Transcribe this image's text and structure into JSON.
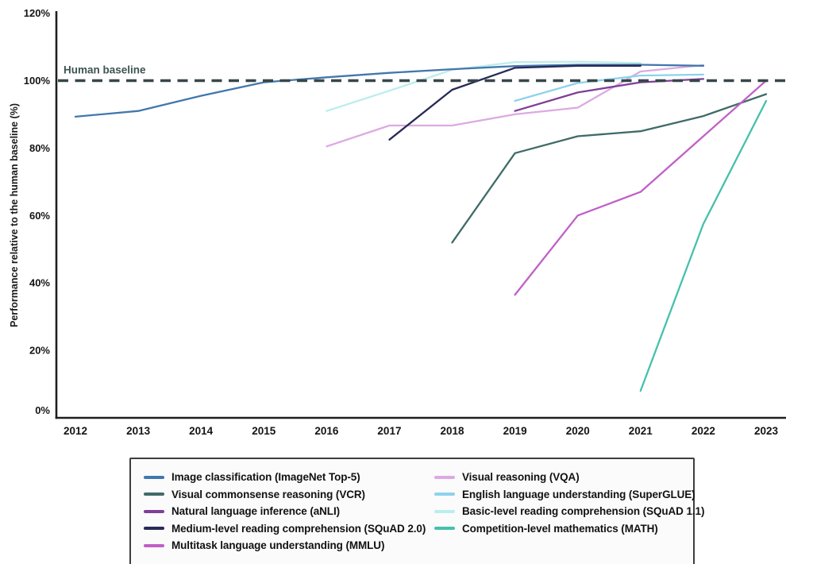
{
  "figure": {
    "background": "#ffffff",
    "axis_color": "#1f1f1f",
    "tick_label_color": "#141414",
    "ylabel_color": "#1a1a1a"
  },
  "chart_data": {
    "type": "line",
    "title": "",
    "xlabel": "",
    "ylabel": "Performance relative to the human baseline (%)",
    "x_ticks": [
      2012,
      2013,
      2014,
      2015,
      2016,
      2017,
      2018,
      2019,
      2020,
      2021,
      2022,
      2023
    ],
    "y_ticks_percent": [
      0,
      20,
      40,
      60,
      80,
      100,
      120
    ],
    "ylim": [
      0,
      120
    ],
    "xlim": [
      2011.7,
      2023.3
    ],
    "grid": false,
    "legend_position": "bottom",
    "annotation": {
      "text": "Human baseline",
      "y": 100,
      "line_color": "#37474a",
      "label_color": "#3f5450",
      "dash": [
        13,
        8.5
      ]
    },
    "series": [
      {
        "key": "imagenet",
        "name": "Image classification (ImageNet Top-5)",
        "color": "#4377ad",
        "points": [
          [
            2012,
            89.3
          ],
          [
            2013,
            91
          ],
          [
            2014,
            95.5
          ],
          [
            2015,
            99.5
          ],
          [
            2016,
            101
          ],
          [
            2017,
            102.3
          ],
          [
            2018,
            103.4
          ],
          [
            2019,
            104.3
          ],
          [
            2020,
            104.7
          ],
          [
            2021,
            104.7
          ],
          [
            2022,
            104.4
          ]
        ]
      },
      {
        "key": "vcr",
        "name": "Visual commonsense reasoning (VCR)",
        "color": "#3f6b68",
        "points": [
          [
            2018,
            52
          ],
          [
            2019,
            78.5
          ],
          [
            2020,
            83.5
          ],
          [
            2021,
            85
          ],
          [
            2022,
            89.5
          ],
          [
            2023,
            96
          ]
        ]
      },
      {
        "key": "anli",
        "name": "Natural language inference (aNLI)",
        "color": "#7e3f97",
        "points": [
          [
            2019,
            91
          ],
          [
            2020,
            96.5
          ],
          [
            2021,
            99.5
          ],
          [
            2022,
            100.5
          ]
        ]
      },
      {
        "key": "squad2",
        "name": "Medium-level reading comprehension (SQuAD 2.0)",
        "color": "#282a56",
        "points": [
          [
            2017,
            82.5
          ],
          [
            2018,
            97.3
          ],
          [
            2019,
            103.8
          ],
          [
            2020,
            104.4
          ],
          [
            2021,
            104.4
          ]
        ]
      },
      {
        "key": "mmlu",
        "name": "Multitask language understanding (MMLU)",
        "color": "#c060c8",
        "points": [
          [
            2019,
            36.5
          ],
          [
            2020,
            60
          ],
          [
            2021,
            67
          ],
          [
            2022,
            83.5
          ],
          [
            2023,
            100
          ]
        ]
      },
      {
        "key": "vqa",
        "name": "Visual reasoning (VQA)",
        "color": "#dcaae2",
        "points": [
          [
            2016,
            80.5
          ],
          [
            2017,
            86.7
          ],
          [
            2018,
            86.7
          ],
          [
            2019,
            90
          ],
          [
            2020,
            92
          ],
          [
            2021,
            102.7
          ],
          [
            2022,
            104.6
          ]
        ]
      },
      {
        "key": "superglue",
        "name": "English language understanding (SuperGLUE)",
        "color": "#8ed2ec",
        "points": [
          [
            2019,
            94
          ],
          [
            2020,
            99.3
          ],
          [
            2021,
            101.5
          ],
          [
            2022,
            101.8
          ]
        ]
      },
      {
        "key": "squad11",
        "name": "Basic-level reading comprehension (SQuAD 1.1)",
        "color": "#bceded",
        "points": [
          [
            2016,
            91
          ],
          [
            2017,
            97
          ],
          [
            2018,
            103.2
          ],
          [
            2019,
            105.5
          ],
          [
            2020,
            105.6
          ],
          [
            2021,
            105.2
          ]
        ]
      },
      {
        "key": "math",
        "name": "Competition-level mathematics (MATH)",
        "color": "#45c0ad",
        "points": [
          [
            2021,
            8
          ],
          [
            2022,
            57.5
          ],
          [
            2023,
            94
          ]
        ]
      }
    ],
    "draw_order": [
      "squad11",
      "vqa",
      "superglue",
      "imagenet",
      "squad2",
      "anli",
      "vcr",
      "math",
      "mmlu"
    ]
  },
  "legend": {
    "rows_per_column": 5
  }
}
